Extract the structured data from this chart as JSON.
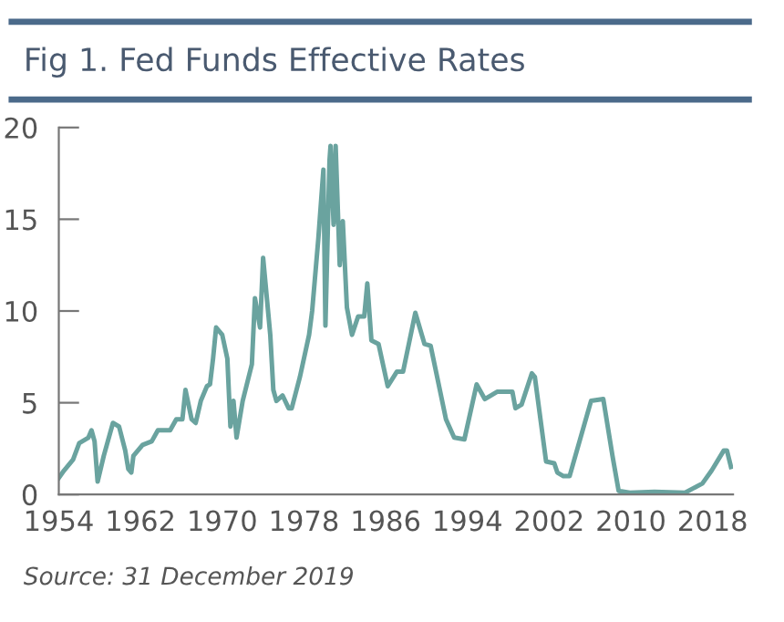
{
  "chart_data": {
    "type": "line",
    "title": "Fig 1. Fed Funds Effective Rates",
    "annotations": [
      "Source: 31 December 2019"
    ],
    "x": [
      1954,
      1954.5,
      1955.4,
      1956.0,
      1956.9,
      1957.2,
      1957.5,
      1957.8,
      1958.4,
      1959.3,
      1959.9,
      1960.5,
      1960.8,
      1961.1,
      1961.3,
      1962.2,
      1963.1,
      1963.7,
      1964.9,
      1965.5,
      1966.1,
      1966.4,
      1967.0,
      1967.4,
      1967.9,
      1968.5,
      1968.8,
      1969.1,
      1969.4,
      1970.0,
      1970.5,
      1970.8,
      1971.1,
      1971.4,
      1972.0,
      1972.9,
      1973.2,
      1973.7,
      1974.0,
      1974.7,
      1975.0,
      1975.3,
      1975.9,
      1976.5,
      1976.8,
      1977.6,
      1978.5,
      1978.8,
      1979.4,
      1979.9,
      1980.1,
      1980.5,
      1980.6,
      1980.9,
      1981.1,
      1981.5,
      1981.8,
      1982.2,
      1982.7,
      1983.3,
      1983.9,
      1984.2,
      1984.6,
      1985.3,
      1986.2,
      1987.1,
      1987.7,
      1988.9,
      1989.8,
      1990.4,
      1991.3,
      1991.9,
      1992.7,
      1993.7,
      1994.9,
      1995.7,
      1996.9,
      1998.4,
      1998.7,
      1999.3,
      2000.3,
      2000.6,
      2001.7,
      2002.5,
      2002.8,
      2003.4,
      2004.0,
      2006.1,
      2007.3,
      2008.2,
      2008.8,
      2009.9,
      2012.3,
      2015.3,
      2017.0,
      2017.9,
      2019.1,
      2019.4,
      2019.8
    ],
    "series": [
      {
        "color": "#6aa39f",
        "values": [
          0.9,
          1.3,
          1.9,
          2.8,
          3.1,
          3.5,
          2.9,
          0.7,
          2.1,
          3.9,
          3.7,
          2.4,
          1.4,
          1.2,
          2.1,
          2.7,
          2.9,
          3.5,
          3.5,
          4.1,
          4.1,
          5.7,
          4.1,
          3.9,
          5.1,
          5.9,
          6.0,
          7.4,
          9.1,
          8.7,
          7.4,
          3.7,
          5.1,
          3.1,
          5.1,
          7.1,
          10.7,
          9.1,
          12.9,
          8.7,
          5.7,
          5.1,
          5.4,
          4.7,
          4.7,
          6.4,
          8.7,
          10.0,
          13.9,
          17.7,
          9.2,
          18.2,
          19.0,
          14.7,
          19.0,
          12.5,
          14.9,
          10.2,
          8.7,
          9.7,
          9.7,
          11.5,
          8.4,
          8.2,
          5.9,
          6.7,
          6.7,
          9.9,
          8.2,
          8.1,
          5.7,
          4.1,
          3.1,
          3.0,
          6.0,
          5.2,
          5.6,
          5.6,
          4.7,
          4.9,
          6.6,
          6.4,
          1.8,
          1.7,
          1.2,
          1.0,
          1.0,
          5.1,
          5.2,
          2.1,
          0.2,
          0.1,
          0.15,
          0.1,
          0.6,
          1.3,
          2.4,
          2.4,
          1.5
        ]
      }
    ],
    "xlim": [
      1954,
      2020
    ],
    "xticks": [
      1954,
      1962,
      1970,
      1978,
      1986,
      1994,
      2002,
      2010,
      2018
    ],
    "ylim": [
      0,
      20
    ],
    "yticks": [
      0,
      5,
      10,
      15,
      20
    ],
    "grid": false,
    "legend": false,
    "marker": "none",
    "line_style": "solid"
  }
}
